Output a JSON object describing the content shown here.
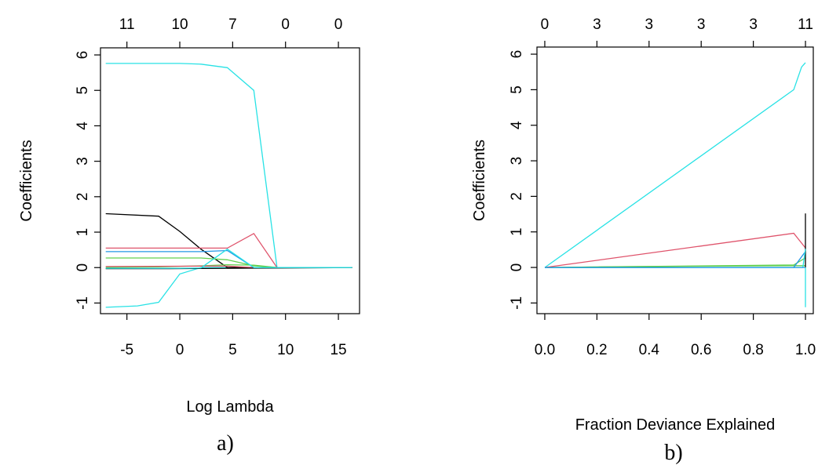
{
  "panels": [
    {
      "caption": "a)",
      "chart_data": {
        "type": "line",
        "xlabel": "Log Lambda",
        "ylabel": "Coefficients",
        "xlim": [
          -7.5,
          17
        ],
        "ylim": [
          -1.3,
          6.2
        ],
        "xticks": [
          -5,
          0,
          5,
          10,
          15
        ],
        "xtick_labels": [
          "-5",
          "0",
          "5",
          "10",
          "15"
        ],
        "yticks": [
          -1,
          0,
          1,
          2,
          3,
          4,
          5,
          6
        ],
        "ytick_labels": [
          "-1",
          "0",
          "1",
          "2",
          "3",
          "4",
          "5",
          "6"
        ],
        "top_ticks": [
          -5,
          0,
          5,
          10,
          15
        ],
        "top_labels": [
          "11",
          "10",
          "7",
          "0",
          "0"
        ],
        "series": [
          {
            "color": "#28E2E5",
            "x": [
              -7,
              -4,
              -2,
              0,
              2,
              4.5,
              7,
              9.2,
              16.3
            ],
            "y": [
              5.76,
              5.76,
              5.76,
              5.76,
              5.74,
              5.64,
              5.0,
              0,
              0
            ]
          },
          {
            "color": "#28E2E5",
            "x": [
              -7,
              -4,
              -2,
              0,
              2,
              4.5,
              9.2,
              16.3
            ],
            "y": [
              -1.12,
              -1.08,
              -0.98,
              -0.18,
              0,
              0,
              0,
              0
            ]
          },
          {
            "color": "#000000",
            "x": [
              -7,
              -2,
              0,
              2,
              4.5,
              9.2,
              16.3
            ],
            "y": [
              1.52,
              1.45,
              1.02,
              0.52,
              0,
              0,
              0
            ]
          },
          {
            "color": "#DF536B",
            "x": [
              -7,
              -2,
              2,
              4.5,
              7,
              9.2,
              16.3
            ],
            "y": [
              0.55,
              0.55,
              0.55,
              0.55,
              0.96,
              0,
              0
            ]
          },
          {
            "color": "#2297E6",
            "x": [
              -7,
              2,
              4.5,
              7,
              9.2,
              16.3
            ],
            "y": [
              0.45,
              0.45,
              0.48,
              0,
              0,
              0
            ]
          },
          {
            "color": "#61D04F",
            "x": [
              -7,
              2,
              4.5,
              7,
              9.2,
              16.3
            ],
            "y": [
              0.27,
              0.27,
              0.22,
              0.05,
              0,
              0
            ]
          },
          {
            "color": "#61D04F",
            "x": [
              -7,
              -2,
              2,
              4.5,
              7,
              9.2,
              16.3
            ],
            "y": [
              0.01,
              0.02,
              0.05,
              0.08,
              0.07,
              0,
              0
            ]
          },
          {
            "color": "#DF536B",
            "x": [
              -7,
              2,
              4.5,
              7,
              16.3
            ],
            "y": [
              0.03,
              0.04,
              0.04,
              0,
              0
            ]
          },
          {
            "color": "#000000",
            "x": [
              -7,
              -1,
              16.3
            ],
            "y": [
              -0.03,
              -0.03,
              0
            ]
          },
          {
            "color": "#28E2E5",
            "x": [
              -7,
              0,
              2,
              4.5,
              7,
              9.2,
              16.3
            ],
            "y": [
              -0.02,
              -0.02,
              -0.01,
              0.52,
              0,
              0,
              0
            ]
          }
        ]
      }
    },
    {
      "caption": "b)",
      "chart_data": {
        "type": "line",
        "xlabel": "Fraction Deviance Explained",
        "ylabel": "Coefficients",
        "xlim": [
          -0.03,
          1.03
        ],
        "ylim": [
          -1.3,
          6.2
        ],
        "xticks": [
          0.0,
          0.2,
          0.4,
          0.6,
          0.8,
          1.0
        ],
        "xtick_labels": [
          "0.0",
          "0.2",
          "0.4",
          "0.6",
          "0.8",
          "1.0"
        ],
        "yticks": [
          -1,
          0,
          1,
          2,
          3,
          4,
          5,
          6
        ],
        "ytick_labels": [
          "-1",
          "0",
          "1",
          "2",
          "3",
          "4",
          "5",
          "6"
        ],
        "top_ticks": [
          0.0,
          0.2,
          0.4,
          0.6,
          0.8,
          1.0
        ],
        "top_labels": [
          "0",
          "3",
          "3",
          "3",
          "3",
          "11"
        ],
        "series": [
          {
            "color": "#28E2E5",
            "x": [
              0.0,
              0.955,
              0.985,
              1.0
            ],
            "y": [
              0,
              5.0,
              5.64,
              5.76
            ]
          },
          {
            "color": "#DF536B",
            "x": [
              0.0,
              0.955,
              1.0
            ],
            "y": [
              0,
              0.96,
              0.55
            ]
          },
          {
            "color": "#61D04F",
            "x": [
              0.0,
              0.955,
              1.0
            ],
            "y": [
              0,
              0.07,
              0.27
            ]
          },
          {
            "color": "#61D04F",
            "x": [
              0.0,
              0.25,
              0.955,
              1.0
            ],
            "y": [
              0,
              0.02,
              0.05,
              0.05
            ]
          },
          {
            "color": "#2297E6",
            "x": [
              0.0,
              0.955,
              1.0
            ],
            "y": [
              0,
              0.0,
              0.45
            ]
          },
          {
            "color": "#000000",
            "x": [
              1.0,
              1.0
            ],
            "y": [
              0,
              1.52
            ]
          },
          {
            "color": "#28E2E5",
            "x": [
              0.0,
              0.99,
              1.0
            ],
            "y": [
              0,
              0,
              0.52
            ]
          },
          {
            "color": "#28E2E5",
            "x": [
              1.0,
              1.0
            ],
            "y": [
              0,
              -1.12
            ]
          },
          {
            "color": "#2297E6",
            "x": [
              0.0,
              1.0
            ],
            "y": [
              0,
              0
            ]
          }
        ]
      }
    }
  ]
}
